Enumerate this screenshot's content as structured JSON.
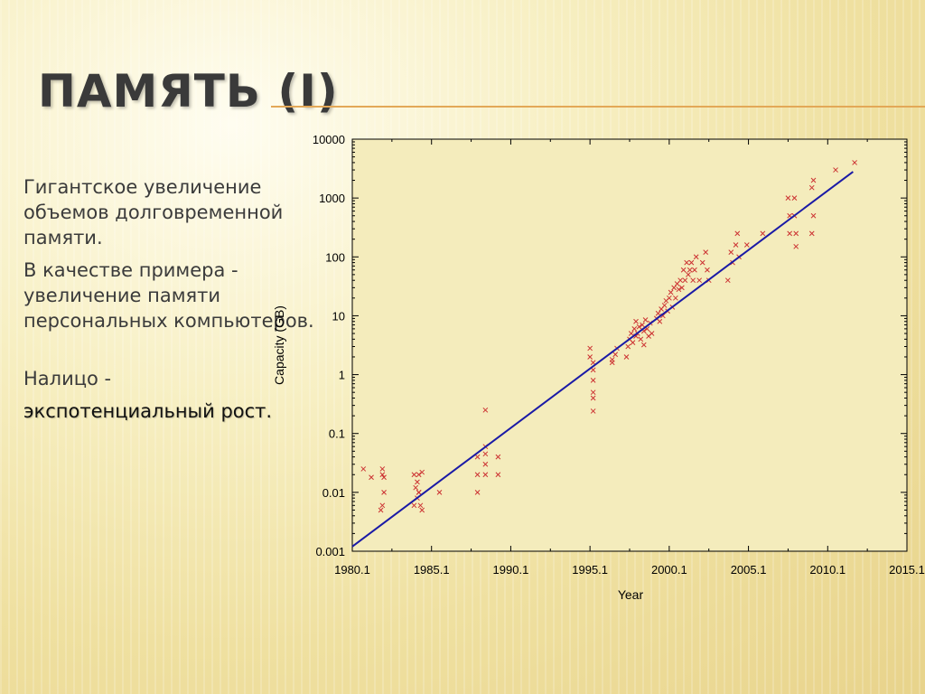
{
  "slide": {
    "title": "ПАМЯТЬ (I)",
    "paragraphs": [
      "Гигантское увеличение объемов долговременной памяти.",
      "В качестве примера - увеличение памяти персональных компьютеров.",
      "Налицо -"
    ],
    "emphasis": "экспотенциальный рост."
  },
  "colors": {
    "title_rule": "#e3a857",
    "points": "#cc3333",
    "trend": "#1a1aa6",
    "plot_bg": "#f4ecbc"
  },
  "chart_data": {
    "type": "scatter",
    "xlabel": "Year",
    "ylabel": "Capacity (GB)",
    "xlim": [
      1980.1,
      2015.1
    ],
    "ylim": [
      0.001,
      10000
    ],
    "yscale": "log",
    "x_ticks": [
      1980.1,
      1985.1,
      1990.1,
      1995.1,
      2000.1,
      2005.1,
      2010.1,
      2015.1
    ],
    "x_tick_labels": [
      "1980.1",
      "1985.1",
      "1990.1",
      "1995.1",
      "2000.1",
      "2005.1",
      "2010.1",
      "2015.1"
    ],
    "y_ticks": [
      0.001,
      0.01,
      0.1,
      1,
      10,
      100,
      1000,
      10000
    ],
    "y_tick_labels": [
      "0.001",
      "0.01",
      "0.1",
      "1",
      "10",
      "100",
      "1000",
      "10000"
    ],
    "grid": false,
    "legend": "none",
    "series": [
      {
        "type": "scatter",
        "marker": "x",
        "points": [
          [
            1980.8,
            0.025
          ],
          [
            1981.3,
            0.018
          ],
          [
            1982.0,
            0.025
          ],
          [
            1982.0,
            0.02
          ],
          [
            1982.1,
            0.018
          ],
          [
            1982.1,
            0.01
          ],
          [
            1982.0,
            0.006
          ],
          [
            1981.9,
            0.005
          ],
          [
            1984.0,
            0.02
          ],
          [
            1984.2,
            0.015
          ],
          [
            1984.3,
            0.02
          ],
          [
            1984.1,
            0.012
          ],
          [
            1984.3,
            0.01
          ],
          [
            1984.5,
            0.022
          ],
          [
            1984.2,
            0.008
          ],
          [
            1984.4,
            0.006
          ],
          [
            1984.0,
            0.006
          ],
          [
            1984.5,
            0.005
          ],
          [
            1984.3,
            0.01
          ],
          [
            1985.6,
            0.01
          ],
          [
            1988.0,
            0.04
          ],
          [
            1988.0,
            0.02
          ],
          [
            1988.0,
            0.01
          ],
          [
            1988.5,
            0.06
          ],
          [
            1988.5,
            0.045
          ],
          [
            1988.5,
            0.03
          ],
          [
            1988.5,
            0.02
          ],
          [
            1988.5,
            0.25
          ],
          [
            1989.3,
            0.04
          ],
          [
            1989.3,
            0.02
          ],
          [
            1995.1,
            2.8
          ],
          [
            1995.1,
            2.0
          ],
          [
            1995.3,
            1.6
          ],
          [
            1995.3,
            1.2
          ],
          [
            1995.3,
            0.8
          ],
          [
            1995.3,
            0.5
          ],
          [
            1995.3,
            0.4
          ],
          [
            1995.3,
            0.24
          ],
          [
            1996.5,
            1.8
          ],
          [
            1996.5,
            1.6
          ],
          [
            1996.7,
            2.2
          ],
          [
            1996.8,
            2.8
          ],
          [
            1997.4,
            2.0
          ],
          [
            1997.5,
            3.0
          ],
          [
            1997.6,
            4.0
          ],
          [
            1997.7,
            5.0
          ],
          [
            1997.8,
            3.5
          ],
          [
            1997.9,
            6.0
          ],
          [
            1998.0,
            4.5
          ],
          [
            1998.0,
            8.0
          ],
          [
            1998.1,
            5.0
          ],
          [
            1998.2,
            6.5
          ],
          [
            1998.3,
            4.0
          ],
          [
            1998.4,
            7.0
          ],
          [
            1998.5,
            5.5
          ],
          [
            1998.5,
            3.2
          ],
          [
            1998.6,
            8.5
          ],
          [
            1998.7,
            6.0
          ],
          [
            1998.8,
            4.5
          ],
          [
            1998.9,
            7.5
          ],
          [
            1999.0,
            5.0
          ],
          [
            1999.3,
            9.0
          ],
          [
            1999.4,
            11.0
          ],
          [
            1999.5,
            8.0
          ],
          [
            1999.6,
            13.0
          ],
          [
            1999.7,
            10.0
          ],
          [
            1999.8,
            15.0
          ],
          [
            1999.9,
            18.0
          ],
          [
            2000.0,
            12.0
          ],
          [
            2000.1,
            20.0
          ],
          [
            2000.2,
            25.0
          ],
          [
            2000.3,
            14.0
          ],
          [
            2000.4,
            30.0
          ],
          [
            2000.5,
            20.0
          ],
          [
            2000.6,
            35.0
          ],
          [
            2000.7,
            28.0
          ],
          [
            2000.8,
            40.0
          ],
          [
            2000.9,
            30.0
          ],
          [
            2001.0,
            60.0
          ],
          [
            2001.1,
            40.0
          ],
          [
            2001.2,
            80.0
          ],
          [
            2001.3,
            50.0
          ],
          [
            2001.4,
            60.0
          ],
          [
            2001.5,
            80.0
          ],
          [
            2001.6,
            40.0
          ],
          [
            2001.7,
            60.0
          ],
          [
            2001.8,
            100.0
          ],
          [
            2002.0,
            40.0
          ],
          [
            2002.2,
            80.0
          ],
          [
            2002.4,
            120.0
          ],
          [
            2002.5,
            60.0
          ],
          [
            2002.6,
            40.0
          ],
          [
            2003.8,
            40.0
          ],
          [
            2004.0,
            120.0
          ],
          [
            2004.1,
            80.0
          ],
          [
            2004.3,
            160.0
          ],
          [
            2004.4,
            250.0
          ],
          [
            2004.5,
            100.0
          ],
          [
            2005.0,
            160.0
          ],
          [
            2006.0,
            250.0
          ],
          [
            2007.6,
            1000.0
          ],
          [
            2007.7,
            500.0
          ],
          [
            2007.7,
            250.0
          ],
          [
            2008.0,
            1000.0
          ],
          [
            2008.0,
            500.0
          ],
          [
            2008.1,
            250.0
          ],
          [
            2008.1,
            150.0
          ],
          [
            2009.1,
            1500.0
          ],
          [
            2009.2,
            2000.0
          ],
          [
            2009.2,
            500.0
          ],
          [
            2009.1,
            250.0
          ],
          [
            2010.6,
            3000.0
          ],
          [
            2011.8,
            4000.0
          ]
        ]
      },
      {
        "type": "line",
        "points": [
          [
            1980.1,
            0.0012
          ],
          [
            2011.7,
            2800.0
          ]
        ]
      }
    ]
  }
}
